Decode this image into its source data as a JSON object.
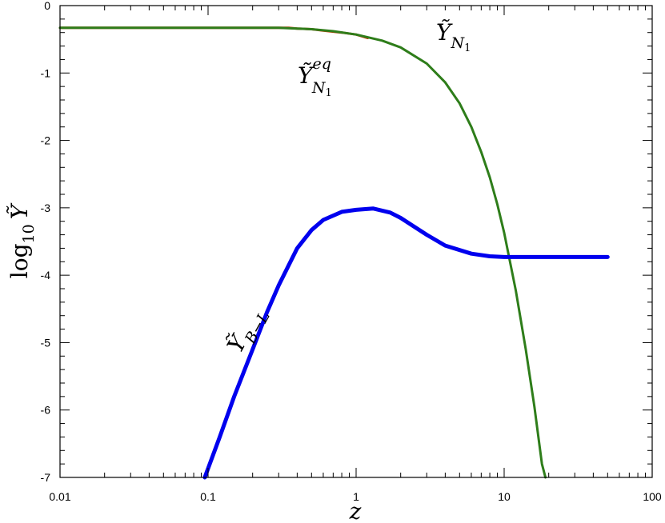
{
  "chart_data": {
    "type": "line",
    "xscale": "log",
    "xlim": [
      0.01,
      100
    ],
    "ylim": [
      -7,
      0
    ],
    "grid": false,
    "xlabel": "z",
    "ylabel": {
      "main": "log",
      "sub": "10",
      "var": "Ỹ"
    },
    "x_tick_labels": [
      "0.01",
      "0.1",
      "1",
      "10",
      "100"
    ],
    "y_tick_labels": [
      "0",
      "-1",
      "-2",
      "-3",
      "-4",
      "-5",
      "-6",
      "-7"
    ],
    "series": [
      {
        "color": "#cc3300",
        "points": [
          [
            0.01,
            -0.33
          ],
          [
            0.1,
            -0.33
          ],
          [
            0.2,
            -0.33
          ],
          [
            0.3,
            -0.33
          ],
          [
            0.35,
            -0.33
          ],
          [
            0.4,
            -0.34
          ],
          [
            0.5,
            -0.35
          ],
          [
            0.6,
            -0.37
          ],
          [
            0.8,
            -0.4
          ],
          [
            1.0,
            -0.43
          ],
          [
            1.2,
            -0.48
          ]
        ]
      },
      {
        "color": "#2e7d1a",
        "points": [
          [
            0.01,
            -0.33
          ],
          [
            0.1,
            -0.33
          ],
          [
            0.2,
            -0.33
          ],
          [
            0.3,
            -0.33
          ],
          [
            0.4,
            -0.34
          ],
          [
            0.5,
            -0.35
          ],
          [
            0.7,
            -0.38
          ],
          [
            1.0,
            -0.43
          ],
          [
            1.5,
            -0.52
          ],
          [
            2.0,
            -0.62
          ],
          [
            3.0,
            -0.86
          ],
          [
            4.0,
            -1.14
          ],
          [
            5.0,
            -1.45
          ],
          [
            6.0,
            -1.8
          ],
          [
            7.0,
            -2.17
          ],
          [
            8.0,
            -2.55
          ],
          [
            9.0,
            -2.95
          ],
          [
            10.0,
            -3.37
          ],
          [
            12.0,
            -4.23
          ],
          [
            14.0,
            -5.1
          ],
          [
            16.0,
            -5.95
          ],
          [
            18.0,
            -6.8
          ],
          [
            19.0,
            -7.0
          ]
        ]
      },
      {
        "color": "#0000ee",
        "points": [
          [
            0.095,
            -7.0
          ],
          [
            0.12,
            -6.4
          ],
          [
            0.15,
            -5.8
          ],
          [
            0.2,
            -5.1
          ],
          [
            0.25,
            -4.55
          ],
          [
            0.3,
            -4.15
          ],
          [
            0.4,
            -3.6
          ],
          [
            0.5,
            -3.33
          ],
          [
            0.6,
            -3.18
          ],
          [
            0.8,
            -3.06
          ],
          [
            1.0,
            -3.03
          ],
          [
            1.3,
            -3.01
          ],
          [
            1.7,
            -3.07
          ],
          [
            2.0,
            -3.15
          ],
          [
            3.0,
            -3.4
          ],
          [
            4.0,
            -3.56
          ],
          [
            6.0,
            -3.68
          ],
          [
            8.0,
            -3.72
          ],
          [
            10.0,
            -3.73
          ],
          [
            20.0,
            -3.73
          ],
          [
            50.0,
            -3.73
          ]
        ]
      }
    ],
    "annotations": [
      {
        "base": "Ỹ",
        "sub": "N",
        "subsub": "1"
      },
      {
        "base": "Ỹ",
        "sup": "eq",
        "sub": "N",
        "subsub": "1"
      },
      {
        "base": "Ỹ",
        "sub": "B−L"
      }
    ]
  }
}
